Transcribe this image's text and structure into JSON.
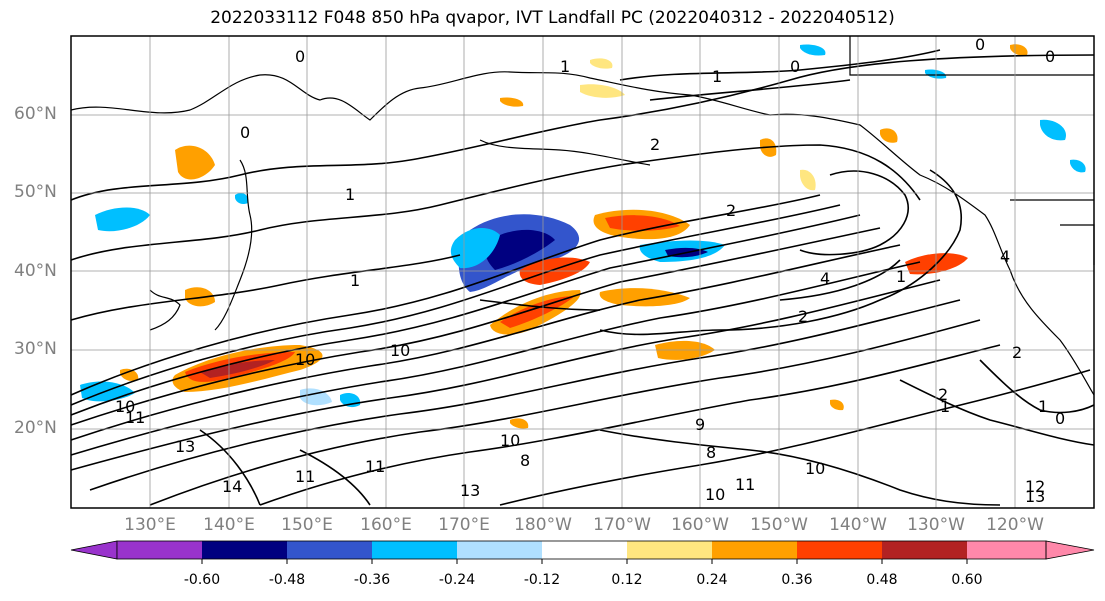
{
  "title": "2022033112 F048 850 hPa qvapor, IVT Landfall PC (2022040312 - 2022040512)",
  "map": {
    "lat_labels": [
      "60°N",
      "50°N",
      "40°N",
      "30°N",
      "20°N"
    ],
    "lon_labels": [
      "130°E",
      "140°E",
      "150°E",
      "160°E",
      "170°E",
      "180°W",
      "170°W",
      "160°W",
      "150°W",
      "140°W",
      "130°W",
      "120°W"
    ],
    "contour_labels": [
      "0",
      "0",
      "1",
      "0",
      "0",
      "1",
      "1",
      "1",
      "2",
      "2",
      "4",
      "4",
      "1",
      "2",
      "10",
      "10",
      "10",
      "11",
      "13",
      "14",
      "11",
      "11",
      "10",
      "10",
      "8",
      "13",
      "9",
      "8",
      "10",
      "11",
      "12",
      "13",
      "1",
      "2",
      "1",
      "0",
      "2",
      "0"
    ]
  },
  "colorbar": {
    "tick_labels": [
      "-0.60",
      "-0.48",
      "-0.36",
      "-0.24",
      "-0.12",
      "0.12",
      "0.24",
      "0.36",
      "0.48",
      "0.60"
    ],
    "colors": [
      "#9933cc",
      "#000080",
      "#3355cc",
      "#00bfff",
      "#b0e0ff",
      "#ffffff",
      "#ffe680",
      "#ffa000",
      "#ff4000",
      "#b22222",
      "#ff88aa"
    ]
  }
}
